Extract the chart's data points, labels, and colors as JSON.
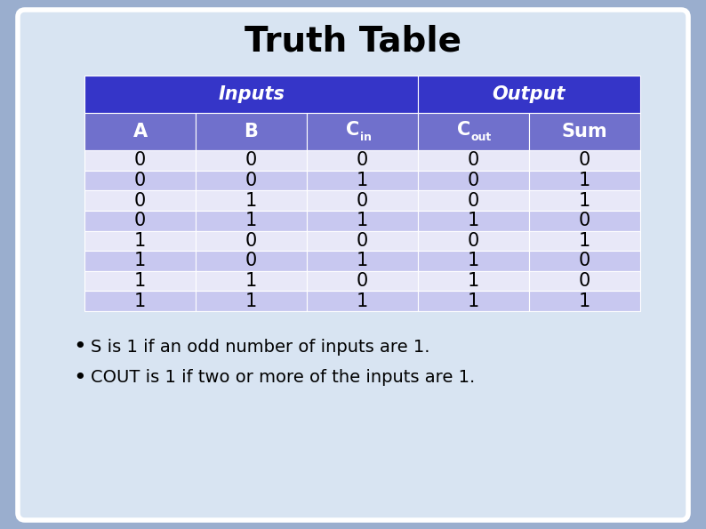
{
  "title": "Truth Table",
  "title_fontsize": 28,
  "title_fontweight": "bold",
  "rows": [
    [
      0,
      0,
      0,
      0,
      0
    ],
    [
      0,
      0,
      1,
      0,
      1
    ],
    [
      0,
      1,
      0,
      0,
      1
    ],
    [
      0,
      1,
      1,
      1,
      0
    ],
    [
      1,
      0,
      0,
      0,
      1
    ],
    [
      1,
      0,
      1,
      1,
      0
    ],
    [
      1,
      1,
      0,
      1,
      0
    ],
    [
      1,
      1,
      1,
      1,
      1
    ]
  ],
  "inputs_header_color": "#3535c8",
  "output_header_color": "#3535c8",
  "header2_color": "#7070cc",
  "row_even_color": "#c8c8f0",
  "row_odd_color": "#e8e8f8",
  "header_text_color": "#ffffff",
  "data_text_color": "#000000",
  "bg_color": "#9aaece",
  "card_color": "#d8e4f2",
  "bullet1": "S is 1 if an odd number of inputs are 1.",
  "bullet2": "COUT is 1 if two or more of the inputs are 1.",
  "bullet_fontsize": 14
}
